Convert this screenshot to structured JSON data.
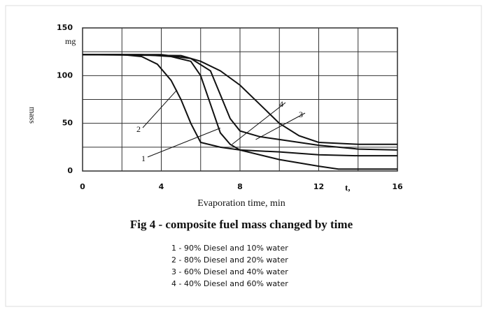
{
  "chart_data": {
    "type": "line",
    "title": "Fig 4 - composite fuel mass changed by time",
    "x_label": "Evaporation time, min",
    "x_unit": "t,",
    "y_label": "mass",
    "y_unit": "mg",
    "xlim": [
      0,
      16
    ],
    "xticks": [
      0,
      4,
      8,
      12,
      16
    ],
    "xminor": [
      2,
      6,
      10,
      14
    ],
    "ylim": [
      0,
      150
    ],
    "yticks": [
      0,
      50,
      100,
      150
    ],
    "yminor": [
      25,
      75,
      125
    ],
    "grid": true,
    "series": [
      {
        "name": "1 - 90% Diesel and 10% water",
        "color": "#111111",
        "x": [
          0,
          3,
          4.5,
          5.5,
          6,
          6.5,
          7,
          7.5,
          8,
          10,
          12,
          13,
          16
        ],
        "values": [
          122,
          122,
          120,
          115,
          100,
          70,
          40,
          28,
          22,
          12,
          5,
          2,
          2
        ]
      },
      {
        "name": "2 - 80% Diesel and 20% water",
        "color": "#111111",
        "x": [
          0,
          2,
          3,
          3.8,
          4.5,
          5,
          5.5,
          6,
          7,
          8,
          10,
          12,
          14,
          16
        ],
        "values": [
          122,
          122,
          120,
          112,
          95,
          75,
          50,
          30,
          25,
          22,
          20,
          17,
          16,
          16
        ]
      },
      {
        "name": "3 - 60% Diesel and 40% water",
        "color": "#111111",
        "x": [
          0,
          4,
          5.5,
          6.5,
          7,
          7.5,
          8,
          9,
          10,
          12,
          14,
          16
        ],
        "values": [
          122,
          122,
          118,
          105,
          80,
          55,
          42,
          36,
          33,
          27,
          23,
          22
        ]
      },
      {
        "name": "4 - 40% Diesel and 60% water",
        "color": "#111111",
        "x": [
          0,
          5,
          6,
          7,
          8,
          9,
          10,
          11,
          12,
          14,
          16
        ],
        "values": [
          122,
          121,
          115,
          105,
          90,
          70,
          50,
          37,
          30,
          28,
          28
        ]
      }
    ],
    "annotations": [
      {
        "text": "1",
        "x": 7,
        "y": 45
      },
      {
        "text": "2",
        "x": 4.8,
        "y": 85
      },
      {
        "text": "3",
        "x": 8.8,
        "y": 33
      },
      {
        "text": "4",
        "x": 7.6,
        "y": 28
      }
    ]
  }
}
